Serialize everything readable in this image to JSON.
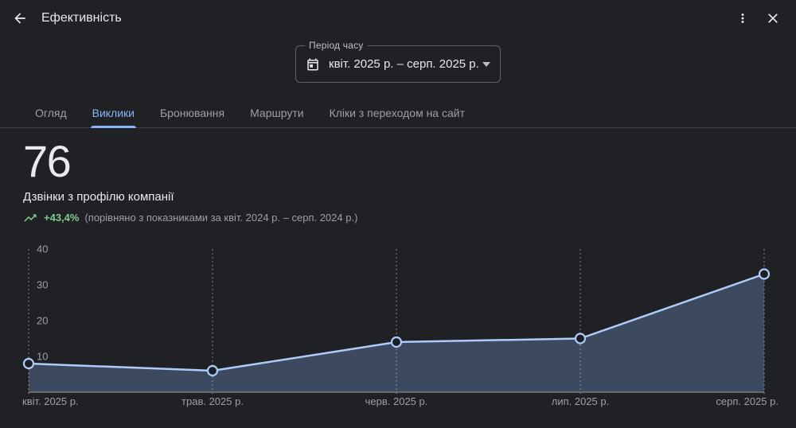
{
  "header": {
    "title": "Ефективність"
  },
  "period_field": {
    "label": "Період часу",
    "value": "квіт. 2025 р. – серп. 2025 р."
  },
  "tabs": [
    {
      "label": "Огляд",
      "active": false
    },
    {
      "label": "Виклики",
      "active": true
    },
    {
      "label": "Бронювання",
      "active": false
    },
    {
      "label": "Маршрути",
      "active": false
    },
    {
      "label": "Кліки з переходом на сайт",
      "active": false
    }
  ],
  "metric": {
    "value": "76",
    "label": "Дзвінки з профілю компанії",
    "delta": "+43,4%",
    "comparison": "(порівняно з показниками за квіт. 2024 р. – серп. 2024 р.)"
  },
  "chart_data": {
    "type": "area",
    "title": "Дзвінки з профілю компанії",
    "categories": [
      "квіт. 2025 р.",
      "трав. 2025 р.",
      "черв. 2025 р.",
      "лип. 2025 р.",
      "серп. 2025 р."
    ],
    "values": [
      8,
      6,
      14,
      15,
      33
    ],
    "yticks": [
      10,
      20,
      30,
      40
    ],
    "ylim": [
      0,
      40
    ],
    "xlabel": "",
    "ylabel": "",
    "grid": "vertical-dashed",
    "legend": "none"
  },
  "colors": {
    "background": "#202124",
    "accent_blue": "#8ab4f8",
    "line_blue": "#aecbfa",
    "area_fill": "rgba(138,180,248,0.28)",
    "positive_green": "#81c995",
    "text_primary": "#e8eaed",
    "text_secondary": "#9aa0a6",
    "divider": "#3c4043",
    "field_border": "#5f6368"
  }
}
